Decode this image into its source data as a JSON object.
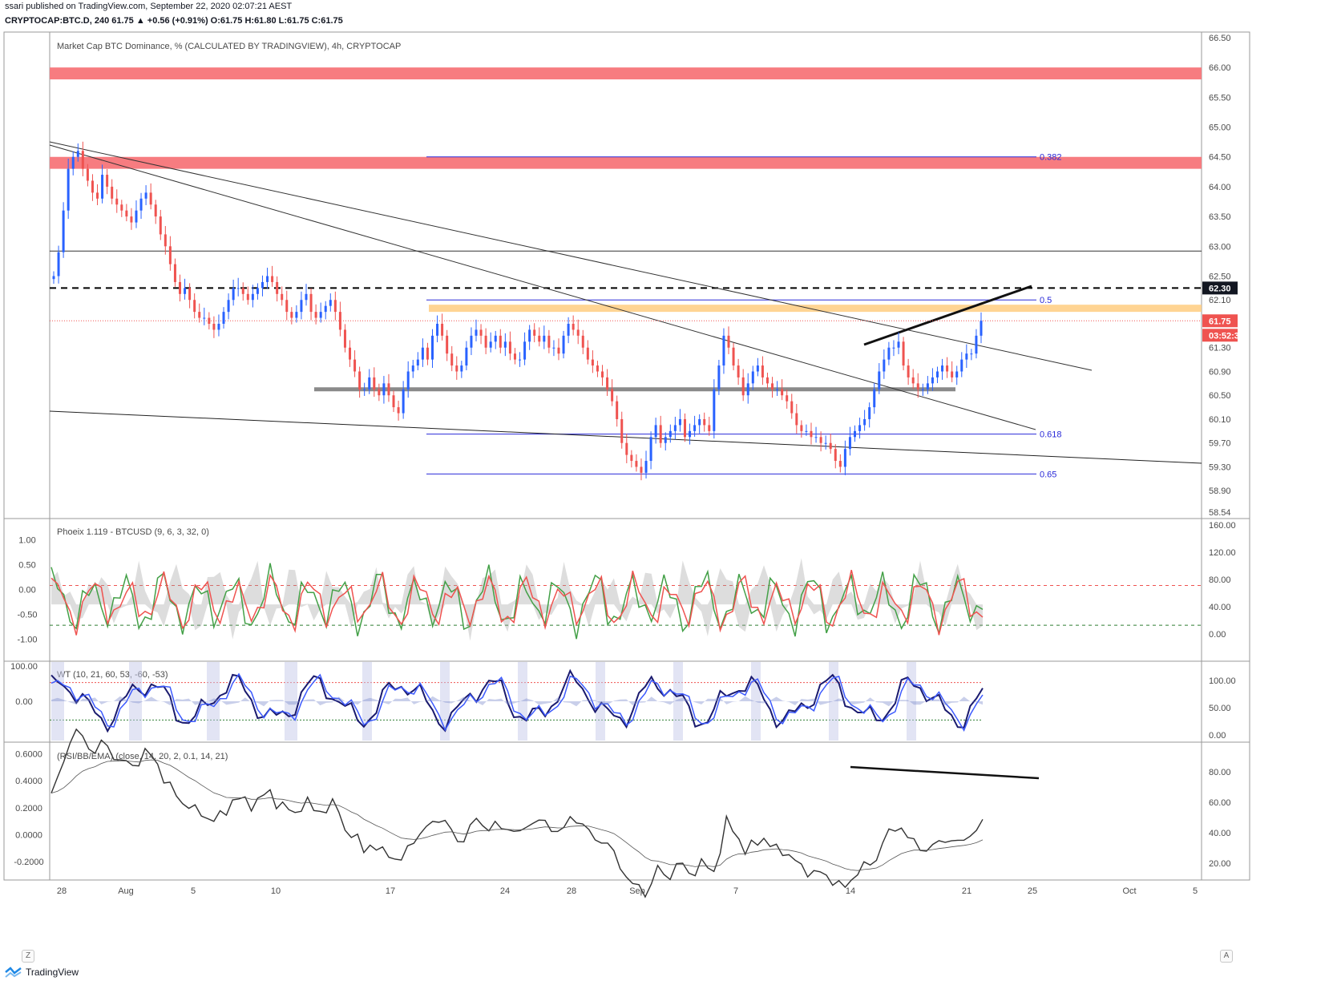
{
  "header": {
    "published": "ssari published on TradingView.com, September 22, 2020 02:07:21 AEST",
    "symbol_line": "CRYPTOCAP:BTC.D, 240  61.75 ▲ +0.56 (+0.91%) O:61.75 H:61.80 L:61.75 C:61.75"
  },
  "footer": {
    "brand": "TradingView",
    "z_label": "Z",
    "a_label": "A"
  },
  "colors": {
    "up": "#2962ff",
    "down": "#ef5350",
    "resistance_zone": "#f77c80",
    "fib_zone": "#ffcc80",
    "fib_line": "#2a2ad8",
    "price_badge": "#ef5350",
    "dashed_level_badge": "#131722"
  },
  "chart_data": [
    {
      "type": "line",
      "pane": "price",
      "title": "Market Cap BTC Dominance, % (CALCULATED BY TRADINGVIEW), 4h, CRYPTOCAP",
      "x_ticks": [
        "28",
        "Aug",
        "5",
        "10",
        "17",
        "24",
        "28",
        "Sep",
        "7",
        "14",
        "21",
        "25",
        "Oct",
        "5"
      ],
      "y_ticks": [
        "66.50",
        "66.00",
        "65.50",
        "65.00",
        "64.50",
        "64.00",
        "63.50",
        "63.00",
        "62.50",
        "62.10",
        "61.70",
        "61.30",
        "60.90",
        "60.50",
        "60.10",
        "59.70",
        "59.30",
        "58.90",
        "58.54"
      ],
      "ylim": [
        58.54,
        66.5
      ],
      "last_price": "61.75",
      "countdown": "03:52:39",
      "dashed_level": "62.30",
      "close_series": [
        62.5,
        62.9,
        63.6,
        64.3,
        64.5,
        64.6,
        64.3,
        64.1,
        63.9,
        63.8,
        64.2,
        64.0,
        63.8,
        63.7,
        63.6,
        63.5,
        63.4,
        63.6,
        63.8,
        63.9,
        63.7,
        63.5,
        63.2,
        63.0,
        62.7,
        62.4,
        62.2,
        62.3,
        62.1,
        61.9,
        61.8,
        61.8,
        61.7,
        61.6,
        61.7,
        61.9,
        62.1,
        62.3,
        62.3,
        62.2,
        62.1,
        62.2,
        62.3,
        62.4,
        62.5,
        62.4,
        62.2,
        62.1,
        61.9,
        61.8,
        61.9,
        62.1,
        62.2,
        61.9,
        61.8,
        61.9,
        62.0,
        62.1,
        61.9,
        61.6,
        61.3,
        61.1,
        60.9,
        60.6,
        60.6,
        60.8,
        60.6,
        60.5,
        60.7,
        60.5,
        60.3,
        60.2,
        60.6,
        60.9,
        61.0,
        61.1,
        61.3,
        61.1,
        61.5,
        61.7,
        61.5,
        61.2,
        61.0,
        60.9,
        61.0,
        61.3,
        61.5,
        61.6,
        61.5,
        61.3,
        61.4,
        61.5,
        61.3,
        61.4,
        61.2,
        61.1,
        61.1,
        61.4,
        61.6,
        61.5,
        61.4,
        61.5,
        61.3,
        61.3,
        61.2,
        61.5,
        61.7,
        61.6,
        61.5,
        61.3,
        61.1,
        61.0,
        60.9,
        60.8,
        60.6,
        60.4,
        60.1,
        59.7,
        59.5,
        59.4,
        59.3,
        59.2,
        59.4,
        59.8,
        60.0,
        59.7,
        59.8,
        59.9,
        60.0,
        60.1,
        59.8,
        59.9,
        60.0,
        60.1,
        60.0,
        59.9,
        60.6,
        61.0,
        61.5,
        61.3,
        61.0,
        60.8,
        60.5,
        60.7,
        60.9,
        61.0,
        60.8,
        60.7,
        60.6,
        60.6,
        60.5,
        60.4,
        60.2,
        60.0,
        59.9,
        59.9,
        59.8,
        59.8,
        59.7,
        59.7,
        59.6,
        59.4,
        59.3,
        59.6,
        59.8,
        59.9,
        60.0,
        60.1,
        60.3,
        60.6,
        60.9,
        61.1,
        61.3,
        61.3,
        61.4,
        61.0,
        60.8,
        60.7,
        60.6,
        60.6,
        60.7,
        60.8,
        60.9,
        61.0,
        60.9,
        60.8,
        60.9,
        61.1,
        61.2,
        61.2,
        61.5,
        61.75
      ],
      "levels": [
        {
          "kind": "zone",
          "from": 65.8,
          "to": 66.0
        },
        {
          "kind": "zone",
          "from": 64.3,
          "to": 64.5
        },
        {
          "kind": "zone",
          "from": 61.9,
          "to": 62.02
        },
        {
          "kind": "line",
          "value": 62.92
        },
        {
          "kind": "dashed",
          "value": 62.3
        },
        {
          "kind": "support",
          "value": 60.6
        }
      ],
      "fib_levels": [
        {
          "label": "0.382",
          "value": 64.5
        },
        {
          "label": "0.5",
          "value": 62.1
        },
        {
          "label": "0.618",
          "value": 59.85
        },
        {
          "label": "0.65",
          "value": 59.18
        }
      ]
    },
    {
      "type": "line",
      "pane": "phoeix",
      "title": "Phoeix 1.119 - BTCUSD (9, 6, 3, 32, 0)",
      "left_ticks": [
        "1.00",
        "0.50",
        "0.00",
        "-0.50",
        "-1.00"
      ],
      "right_ticks": [
        "160.00",
        "120.00",
        "80.00",
        "40.00",
        "0.00"
      ],
      "ylim": [
        -1.3,
        1.3
      ],
      "levels": [
        {
          "value": 0.08,
          "color": "#ef5350"
        },
        {
          "value": -0.72,
          "color": "#2e7d32"
        }
      ]
    },
    {
      "type": "line",
      "pane": "wt",
      "title": "WT (10, 21, 60, 53, -60, -53)",
      "left_ticks": [
        "100.00",
        "0.00"
      ],
      "right_ticks": [
        "100.00",
        "50.00",
        "0.00"
      ],
      "ylim": [
        -100,
        100
      ],
      "levels": [
        {
          "value": 53,
          "color": "#ef5350"
        },
        {
          "value": -53,
          "color": "#2e7d32"
        }
      ]
    },
    {
      "type": "line",
      "pane": "rsi",
      "title": "(RSI/BB/EMA) (close, 14, 20, 2, 0.1, 14, 21)",
      "left_ticks": [
        "0.6000",
        "0.4000",
        "0.2000",
        "0.0000",
        "-0.2000"
      ],
      "right_ticks": [
        "80.00",
        "60.00",
        "40.00",
        "20.00"
      ],
      "ylim": [
        -0.3,
        0.65
      ]
    }
  ]
}
